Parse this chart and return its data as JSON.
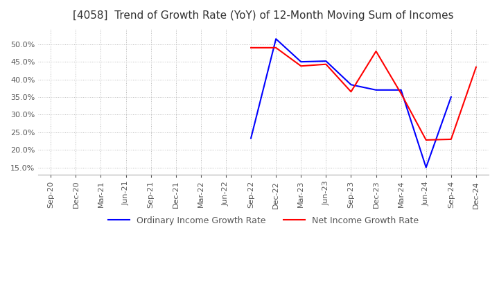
{
  "title": "[4058]  Trend of Growth Rate (YoY) of 12-Month Moving Sum of Incomes",
  "title_fontsize": 11,
  "tick_fontsize": 8,
  "ylim": [
    0.13,
    0.545
  ],
  "yticks": [
    0.15,
    0.2,
    0.25,
    0.3,
    0.35,
    0.4,
    0.45,
    0.5
  ],
  "background_color": "#ffffff",
  "grid_color": "#bbbbbb",
  "ordinary_color": "#0000ff",
  "net_color": "#ff0000",
  "legend_labels": [
    "Ordinary Income Growth Rate",
    "Net Income Growth Rate"
  ],
  "x_labels": [
    "Sep-20",
    "Dec-20",
    "Mar-21",
    "Jun-21",
    "Sep-21",
    "Dec-21",
    "Mar-22",
    "Jun-22",
    "Sep-22",
    "Dec-22",
    "Mar-23",
    "Jun-23",
    "Sep-23",
    "Dec-23",
    "Mar-24",
    "Jun-24",
    "Sep-24",
    "Dec-24"
  ],
  "ordinary_income": [
    null,
    null,
    null,
    null,
    null,
    null,
    null,
    null,
    0.233,
    0.515,
    0.45,
    0.452,
    0.385,
    0.37,
    0.37,
    0.15,
    0.35,
    null
  ],
  "net_income": [
    null,
    null,
    null,
    null,
    null,
    null,
    null,
    null,
    0.49,
    0.49,
    0.438,
    0.443,
    0.365,
    0.48,
    0.36,
    0.228,
    0.23,
    0.435
  ]
}
